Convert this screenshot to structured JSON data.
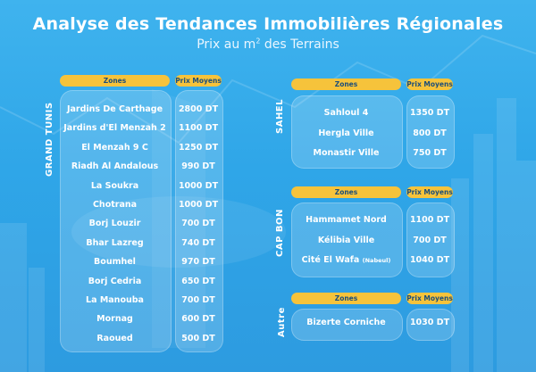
{
  "header": {
    "title": "Analyse des Tendances Immobilières Régionales",
    "subtitle_prefix": "Prix au m",
    "subtitle_sup": "2",
    "subtitle_suffix": " des Terrains"
  },
  "column_headers": {
    "zones": "Zones",
    "prix": "Prix Moyens"
  },
  "regions": {
    "grand_tunis": {
      "label": "GRAND TUNIS",
      "rows": [
        {
          "zone": "Jardins De Carthage",
          "price": "2800 DT"
        },
        {
          "zone": "Jardins d'El Menzah 2",
          "price": "1100 DT"
        },
        {
          "zone": "El Menzah 9 C",
          "price": "1250 DT"
        },
        {
          "zone": "Riadh Al Andalous",
          "price": "990 DT"
        },
        {
          "zone": "La Soukra",
          "price": "1000 DT"
        },
        {
          "zone": "Chotrana",
          "price": "1000 DT"
        },
        {
          "zone": "Borj Louzir",
          "price": "700 DT"
        },
        {
          "zone": "Bhar Lazreg",
          "price": "740 DT"
        },
        {
          "zone": "Boumhel",
          "price": "970 DT"
        },
        {
          "zone": "Borj Cedria",
          "price": "650 DT"
        },
        {
          "zone": "La Manouba",
          "price": "700 DT"
        },
        {
          "zone": "Mornag",
          "price": "600 DT"
        },
        {
          "zone": "Raoued",
          "price": "500 DT"
        }
      ]
    },
    "sahel": {
      "label": "SAHEL",
      "rows": [
        {
          "zone": "Sahloul 4",
          "price": "1350 DT"
        },
        {
          "zone": "Hergla Ville",
          "price": "800 DT"
        },
        {
          "zone": "Monastir Ville",
          "price": "750 DT"
        }
      ]
    },
    "cap_bon": {
      "label": "CAP BON",
      "rows": [
        {
          "zone": "Hammamet Nord",
          "price": "1100 DT"
        },
        {
          "zone": "Kélibia Ville",
          "price": "700 DT"
        },
        {
          "zone": "Cité El Wafa",
          "zone_note": "(Nabeul)",
          "price": "1040 DT"
        }
      ]
    },
    "autre": {
      "label": "Autre",
      "rows": [
        {
          "zone": "Bizerte Corniche",
          "price": "1030 DT"
        }
      ]
    }
  }
}
